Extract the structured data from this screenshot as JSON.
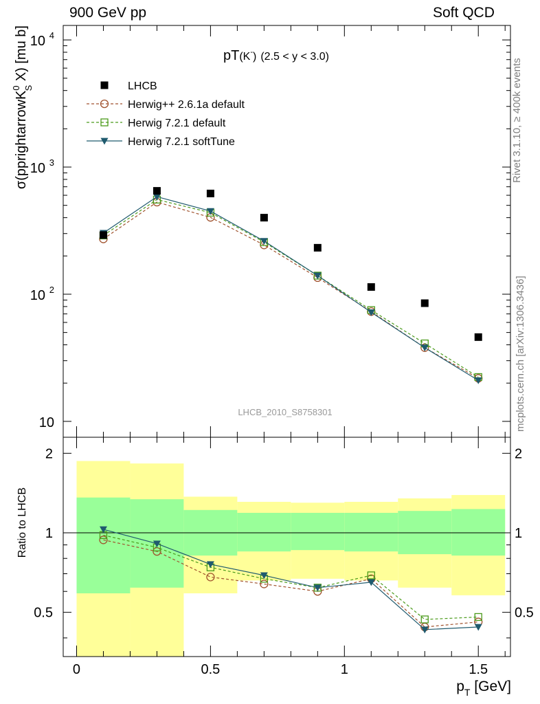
{
  "header": {
    "left": "900 GeV pp",
    "right": "Soft QCD"
  },
  "side_labels": {
    "rivet": "Rivet 3.1.10, ≥ 400k events",
    "mcplots": "mcplots.cern.ch [arXiv:1306.3436]"
  },
  "chart_data": [
    {
      "type": "scatter",
      "title": "pT(K̅)",
      "title_parts": {
        "main": "pT",
        "particle": "(K",
        "particle_sup": "-",
        "particle_close": ")",
        "range": "(2.5 < y < 3.0)"
      },
      "ylabel": "σ(pprightarrowK",
      "ylabel_parts": {
        "main": "σ(pprightarrowK",
        "sup": "0",
        "sub": "S",
        "rest": " X) [mu b]"
      },
      "watermark": "LHCB_2010_S8758301",
      "xlim": [
        -0.05,
        1.62
      ],
      "ylim": [
        7.5,
        13000
      ],
      "yscale": "log",
      "y_ticks": [
        {
          "value": 10,
          "base": "10",
          "exp": ""
        },
        {
          "value": 100,
          "base": "10",
          "exp": "2"
        },
        {
          "value": 1000,
          "base": "10",
          "exp": "3"
        },
        {
          "value": 10000,
          "base": "10",
          "exp": "4"
        }
      ],
      "x": [
        0.1,
        0.3,
        0.5,
        0.7,
        0.9,
        1.1,
        1.3,
        1.5
      ],
      "legend_position": "top-left",
      "series": [
        {
          "name": "LHCB",
          "marker": "square-filled",
          "line": "none",
          "color": "#000000",
          "values": [
            292,
            650,
            620,
            400,
            232,
            114,
            85,
            46
          ]
        },
        {
          "name": "Herwig++ 2.6.1a default",
          "marker": "circle-open",
          "line": "dashed",
          "color": "#a0522d",
          "values": [
            272,
            530,
            402,
            244,
            135,
            73,
            38,
            21.8
          ]
        },
        {
          "name": "Herwig 7.2.1 default",
          "marker": "square-open",
          "line": "dashed",
          "color": "#4a9a1a",
          "values": [
            290,
            555,
            438,
            257,
            140,
            75,
            41,
            22.3
          ]
        },
        {
          "name": "Herwig 7.2.1 softTune",
          "marker": "triangle-down-filled",
          "line": "solid",
          "color": "#1f5a6e",
          "values": [
            303,
            585,
            450,
            262,
            140,
            72,
            38,
            21
          ]
        }
      ]
    },
    {
      "type": "line",
      "ylabel": "Ratio to LHCB",
      "xlabel": "p",
      "xlabel_parts": {
        "main": "p",
        "sub": "T",
        "rest": " [GeV]"
      },
      "xlim": [
        -0.05,
        1.62
      ],
      "ylim": [
        0.34,
        2.3
      ],
      "yscale": "log",
      "x_ticks": [
        {
          "value": 0,
          "label": "0"
        },
        {
          "value": 0.5,
          "label": "0.5"
        },
        {
          "value": 1,
          "label": "1"
        },
        {
          "value": 1.5,
          "label": "1.5"
        }
      ],
      "y_ticks": [
        {
          "value": 0.5,
          "label": "0.5"
        },
        {
          "value": 1,
          "label": "1"
        },
        {
          "value": 2,
          "label": "2"
        }
      ],
      "reference_line": 1,
      "bins": [
        {
          "lo": 0.0,
          "hi": 0.2,
          "band_yellow": [
            0.0,
            1.87
          ],
          "band_green": [
            0.59,
            1.36
          ]
        },
        {
          "lo": 0.2,
          "hi": 0.4,
          "band_yellow": [
            0.0,
            1.83
          ],
          "band_green": [
            0.62,
            1.34
          ]
        },
        {
          "lo": 0.4,
          "hi": 0.6,
          "band_yellow": [
            0.59,
            1.37
          ],
          "band_green": [
            0.82,
            1.22
          ]
        },
        {
          "lo": 0.6,
          "hi": 0.8,
          "band_yellow": [
            0.66,
            1.31
          ],
          "band_green": [
            0.85,
            1.19
          ]
        },
        {
          "lo": 0.8,
          "hi": 1.0,
          "band_yellow": [
            0.67,
            1.3
          ],
          "band_green": [
            0.86,
            1.19
          ]
        },
        {
          "lo": 1.0,
          "hi": 1.2,
          "band_yellow": [
            0.66,
            1.31
          ],
          "band_green": [
            0.85,
            1.19
          ]
        },
        {
          "lo": 1.2,
          "hi": 1.4,
          "band_yellow": [
            0.62,
            1.35
          ],
          "band_green": [
            0.83,
            1.21
          ]
        },
        {
          "lo": 1.4,
          "hi": 1.6,
          "band_yellow": [
            0.58,
            1.39
          ],
          "band_green": [
            0.82,
            1.23
          ]
        }
      ],
      "x": [
        0.1,
        0.3,
        0.5,
        0.7,
        0.9,
        1.1,
        1.3,
        1.5
      ],
      "series": [
        {
          "name": "Herwig++ 2.6.1a default",
          "marker": "circle-open",
          "line": "dashed",
          "color": "#a0522d",
          "values": [
            0.94,
            0.85,
            0.68,
            0.64,
            0.6,
            0.67,
            0.44,
            0.46
          ]
        },
        {
          "name": "Herwig 7.2.1 default",
          "marker": "square-open",
          "line": "dashed",
          "color": "#4a9a1a",
          "values": [
            0.98,
            0.88,
            0.74,
            0.67,
            0.62,
            0.69,
            0.47,
            0.48
          ]
        },
        {
          "name": "Herwig 7.2.1 softTune",
          "marker": "triangle-down-filled",
          "line": "solid",
          "color": "#1f5a6e",
          "values": [
            1.03,
            0.91,
            0.76,
            0.69,
            0.62,
            0.65,
            0.43,
            0.44
          ]
        }
      ]
    }
  ]
}
